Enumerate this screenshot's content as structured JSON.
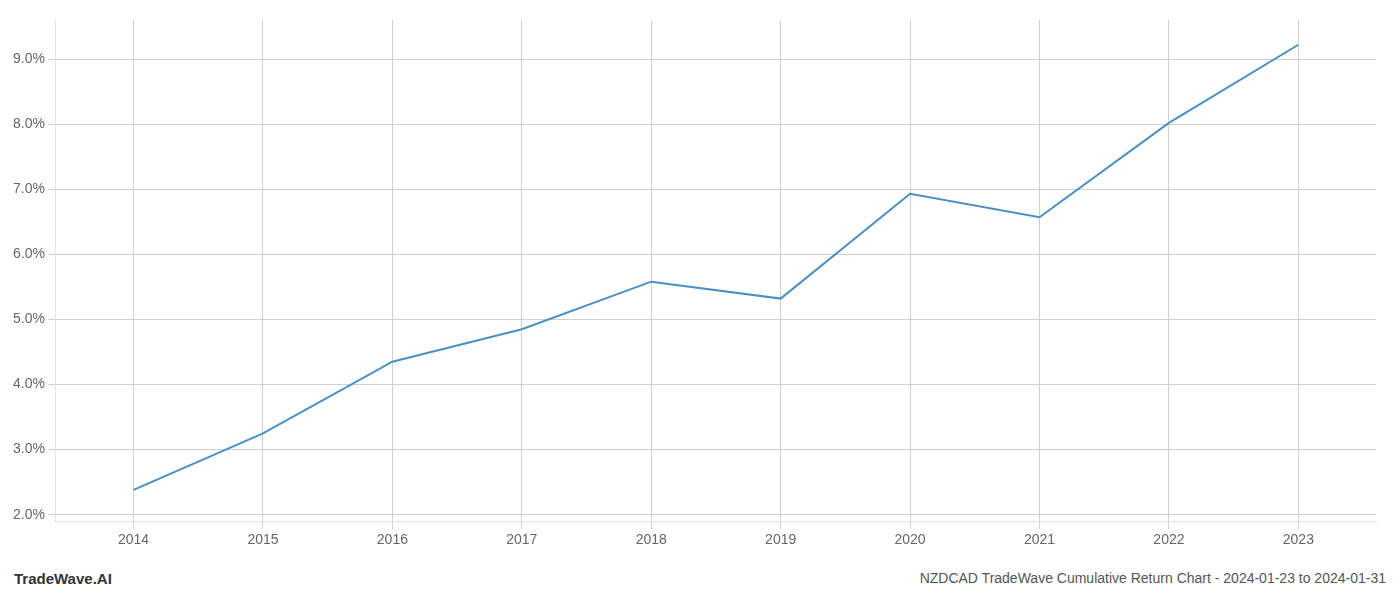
{
  "chart_data": {
    "type": "line",
    "title": "NZDCAD TradeWave Cumulative Return Chart - 2024-01-23 to 2024-01-31",
    "annotations": [
      "TradeWave.AI"
    ],
    "x": [
      2014,
      2015,
      2016,
      2017,
      2018,
      2019,
      2020,
      2021,
      2022,
      2023
    ],
    "values": [
      0.0238,
      0.0325,
      0.0435,
      0.0485,
      0.0558,
      0.0532,
      0.0693,
      0.0657,
      0.0802,
      0.0922
    ],
    "color": "#4a90c4",
    "xlim": [
      2013.4,
      2023.6
    ],
    "xticks": [
      2014,
      2015,
      2016,
      2017,
      2018,
      2019,
      2020,
      2021,
      2022,
      2023
    ],
    "ylim": [
      0.019,
      0.096
    ],
    "yticks": [
      {
        "value": 0.02,
        "label": "2.0%"
      },
      {
        "value": 0.03,
        "label": "3.0%"
      },
      {
        "value": 0.04,
        "label": "4.0%"
      },
      {
        "value": 0.05,
        "label": "5.0%"
      },
      {
        "value": 0.06,
        "label": "6.0%"
      },
      {
        "value": 0.07,
        "label": "7.0%"
      },
      {
        "value": 0.08,
        "label": "8.0%"
      },
      {
        "value": 0.09,
        "label": "9.0%"
      }
    ],
    "grid": true
  }
}
